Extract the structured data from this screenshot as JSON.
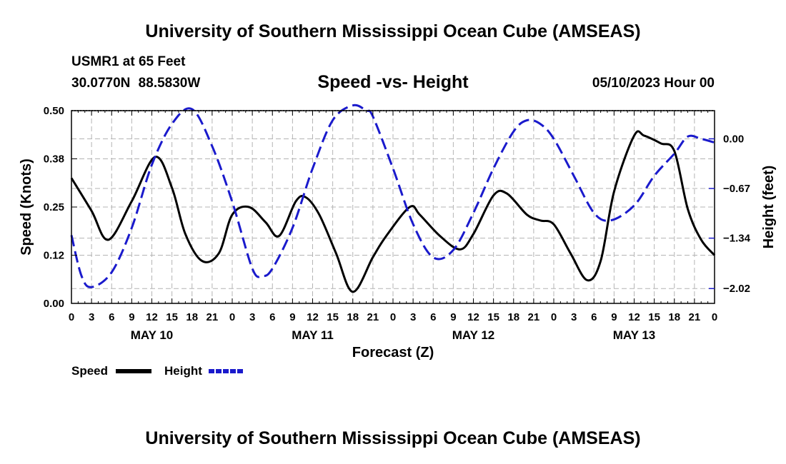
{
  "header": {
    "title": "University of Southern Mississippi Ocean Cube (AMSEAS)",
    "station": "USMR1 at 65 Feet",
    "coordinates": "30.0770N  88.5830W",
    "issued": "05/10/2023 Hour 00"
  },
  "footer": {
    "title": "University of Southern Mississippi Ocean Cube (AMSEAS)"
  },
  "colors": {
    "speed": "#000000",
    "height": "#1a1acc",
    "grid": "#b4b4b4"
  },
  "chart_data": {
    "type": "line",
    "title": "Speed -vs- Height",
    "xlabel": "Forecast (Z)",
    "ylabel": "Speed (Knots)",
    "y2label": "Height (feet)",
    "xlim": [
      0,
      96
    ],
    "ylim": [
      0,
      0.5
    ],
    "y2lim": [
      -2.22,
      0.38
    ],
    "x_ticks": [
      0,
      3,
      6,
      9,
      12,
      15,
      18,
      21,
      24,
      27,
      30,
      33,
      36,
      39,
      42,
      45,
      48,
      51,
      54,
      57,
      60,
      63,
      66,
      69,
      72,
      75,
      78,
      81,
      84,
      87,
      90,
      93,
      96
    ],
    "x_tick_labels": [
      "0",
      "3",
      "6",
      "9",
      "12",
      "15",
      "18",
      "21",
      "0",
      "3",
      "6",
      "9",
      "12",
      "15",
      "18",
      "21",
      "0",
      "3",
      "6",
      "9",
      "12",
      "15",
      "18",
      "21",
      "0",
      "3",
      "6",
      "9",
      "12",
      "15",
      "18",
      "21",
      "0"
    ],
    "day_labels": [
      {
        "x": 12,
        "label": "MAY 10"
      },
      {
        "x": 36,
        "label": "MAY 11"
      },
      {
        "x": 60,
        "label": "MAY 12"
      },
      {
        "x": 84,
        "label": "MAY 13"
      }
    ],
    "y_ticks": [
      0.0,
      0.125,
      0.25,
      0.375,
      0.5
    ],
    "y_tick_labels": [
      "0.00",
      "0.12",
      "0.25",
      "0.38",
      "0.50"
    ],
    "y2_ticks": [
      0.0,
      -0.67,
      -1.34,
      -2.02
    ],
    "y2_tick_labels": [
      "0.00",
      "−0.67",
      "−1.34",
      "−2.02"
    ],
    "grid": true,
    "legend": "bottom-left",
    "series": [
      {
        "name": "Speed",
        "axis": "left",
        "style": "solid",
        "x": [
          0,
          3,
          5.5,
          9,
          12.5,
          15,
          17,
          19.5,
          22,
          24,
          26.5,
          29,
          31,
          33.5,
          35,
          37,
          39.5,
          42,
          45,
          47,
          50.5,
          52,
          55,
          58,
          60,
          63,
          65,
          68,
          70,
          72,
          74.5,
          77,
          79,
          81,
          84,
          85.5,
          88,
          90,
          92,
          94,
          96
        ],
        "y": [
          0.325,
          0.24,
          0.165,
          0.265,
          0.38,
          0.3,
          0.18,
          0.11,
          0.13,
          0.23,
          0.25,
          0.21,
          0.175,
          0.265,
          0.275,
          0.23,
          0.13,
          0.03,
          0.12,
          0.175,
          0.25,
          0.23,
          0.175,
          0.14,
          0.18,
          0.28,
          0.285,
          0.23,
          0.215,
          0.205,
          0.13,
          0.06,
          0.11,
          0.29,
          0.435,
          0.435,
          0.415,
          0.395,
          0.245,
          0.165,
          0.125
        ]
      },
      {
        "name": "Height",
        "axis": "right",
        "style": "dashed",
        "x": [
          0,
          1.5,
          3,
          6,
          9,
          12,
          15,
          18,
          21,
          24,
          27,
          28.5,
          30,
          33,
          36,
          39,
          42,
          44,
          45,
          48,
          51,
          54,
          57,
          60,
          63,
          66,
          68,
          70,
          72,
          75,
          78,
          80.5,
          84,
          87,
          90,
          92,
          94,
          96
        ],
        "y": [
          -1.3,
          -1.85,
          -2.0,
          -1.8,
          -1.2,
          -0.35,
          0.2,
          0.4,
          -0.1,
          -0.85,
          -1.75,
          -1.85,
          -1.75,
          -1.2,
          -0.4,
          0.25,
          0.45,
          0.38,
          0.3,
          -0.4,
          -1.15,
          -1.6,
          -1.5,
          -1.0,
          -0.4,
          0.1,
          0.25,
          0.2,
          0.0,
          -0.5,
          -1.0,
          -1.1,
          -0.9,
          -0.5,
          -0.2,
          0.03,
          0.0,
          -0.05
        ]
      }
    ]
  },
  "legend": {
    "speed_label": "Speed",
    "height_label": "Height"
  }
}
